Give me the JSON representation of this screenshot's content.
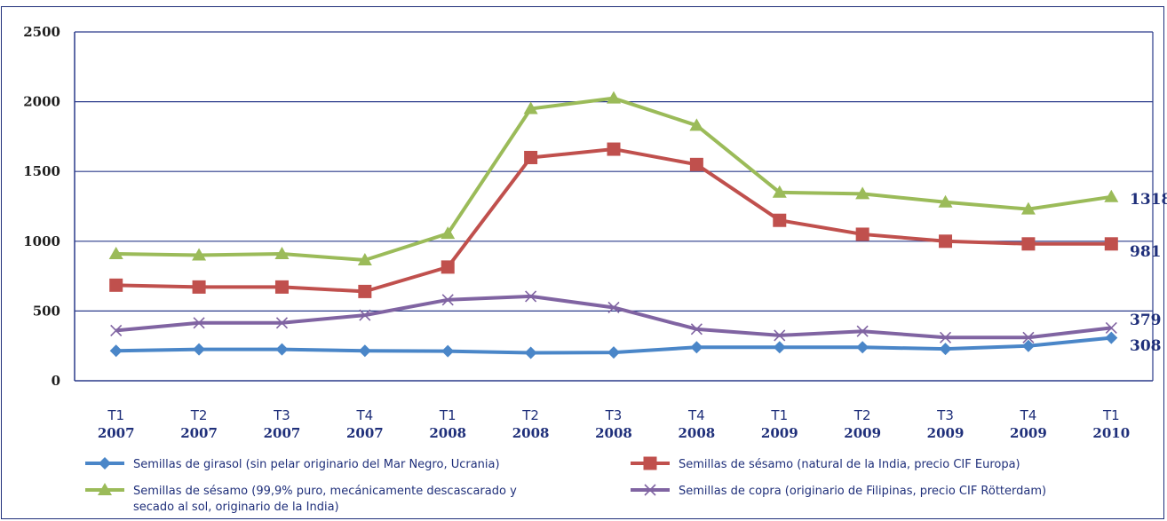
{
  "chart_data": {
    "type": "line",
    "categories": [
      [
        "T1",
        "2007"
      ],
      [
        "T2",
        "2007"
      ],
      [
        "T3",
        "2007"
      ],
      [
        "T4",
        "2007"
      ],
      [
        "T1",
        "2008"
      ],
      [
        "T2",
        "2008"
      ],
      [
        "T3",
        "2008"
      ],
      [
        "T4",
        "2008"
      ],
      [
        "T1",
        "2009"
      ],
      [
        "T2",
        "2009"
      ],
      [
        "T3",
        "2009"
      ],
      [
        "T4",
        "2009"
      ],
      [
        "T1",
        "2010"
      ]
    ],
    "y_ticks": [
      "0",
      "500",
      "1000",
      "1500",
      "2000",
      "2500"
    ],
    "ylim": [
      0,
      2500
    ],
    "grid": true,
    "legend_position": "bottom",
    "series": [
      {
        "name": "Semillas de girasol (sin pelar originario del Mar Negro, Ucrania)",
        "color": "#4a86c8",
        "marker": "diamond",
        "values": [
          215,
          225,
          225,
          215,
          212,
          200,
          203,
          240,
          240,
          240,
          228,
          250,
          308
        ],
        "end_label": "308"
      },
      {
        "name": "Semillas de sésamo (natural de la India, precio CIF Europa)",
        "color": "#c0504d",
        "marker": "square",
        "values": [
          685,
          672,
          672,
          640,
          815,
          1600,
          1660,
          1550,
          1150,
          1050,
          1000,
          981,
          981
        ],
        "end_label": "981"
      },
      {
        "name": "Semillas de sésamo (99,9% puro, mecánicamente descascarado y secado al sol, originario de la India)",
        "name_lines": [
          "Semillas de sésamo (99,9% puro, mecánicamente descascarado y",
          "secado al sol, originario de la India)"
        ],
        "color": "#9bbb59",
        "marker": "triangle",
        "values": [
          910,
          900,
          910,
          865,
          1055,
          1950,
          2025,
          1830,
          1350,
          1340,
          1280,
          1230,
          1318
        ],
        "end_label": "1318"
      },
      {
        "name": "Semillas de copra (originario de Filipinas, precio CIF Rötterdam)",
        "color": "#8064a2",
        "marker": "x",
        "values": [
          360,
          415,
          415,
          470,
          580,
          605,
          525,
          370,
          325,
          355,
          310,
          310,
          379
        ],
        "end_label": "379"
      }
    ]
  }
}
